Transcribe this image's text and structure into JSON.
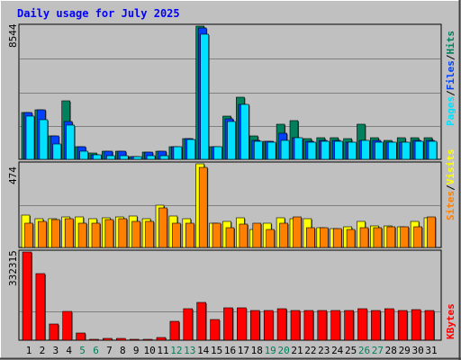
{
  "title": "Daily usage for July 2025",
  "colors": {
    "background": "#c0c0c0",
    "title": "#0000ff",
    "hits": "#00805c",
    "files": "#0040ff",
    "pages": "#00e0ff",
    "visits": "#ffff00",
    "sites": "#ff8000",
    "kbytes": "#ff0000",
    "weekend_day": "#00805c"
  },
  "legends": {
    "upper": [
      {
        "text": "Pages",
        "color": "#00e0ff"
      },
      {
        "text": "/",
        "color": "#000000"
      },
      {
        "text": "Files",
        "color": "#0040ff"
      },
      {
        "text": "/",
        "color": "#000000"
      },
      {
        "text": "Hits",
        "color": "#00805c"
      }
    ],
    "middle": [
      {
        "text": "Sites",
        "color": "#ff8000"
      },
      {
        "text": "/",
        "color": "#000000"
      },
      {
        "text": "Visits",
        "color": "#ffff00"
      }
    ],
    "lower": [
      {
        "text": "KBytes",
        "color": "#ff0000"
      }
    ]
  },
  "chart_data": [
    {
      "type": "bar",
      "panel": "hits-files-pages",
      "ymax_label": "8544",
      "ylim": [
        0,
        8544
      ],
      "categories": [
        "1",
        "2",
        "3",
        "4",
        "5",
        "6",
        "7",
        "8",
        "9",
        "10",
        "11",
        "12",
        "13",
        "14",
        "15",
        "16",
        "17",
        "18",
        "19",
        "20",
        "21",
        "22",
        "23",
        "24",
        "25",
        "26",
        "27",
        "28",
        "29",
        "30",
        "31"
      ],
      "series": [
        {
          "name": "Hits",
          "values": [
            3020,
            3180,
            1510,
            3750,
            820,
            420,
            500,
            500,
            200,
            450,
            500,
            800,
            1300,
            8544,
            800,
            2750,
            3960,
            1520,
            1150,
            2250,
            2500,
            1350,
            1360,
            1360,
            1350,
            2250,
            1360,
            1230,
            1360,
            1360,
            1360
          ]
        },
        {
          "name": "Files",
          "values": [
            3020,
            3180,
            1510,
            2450,
            820,
            310,
            500,
            500,
            200,
            450,
            500,
            800,
            1300,
            8400,
            800,
            2600,
            3500,
            1220,
            1150,
            1700,
            1380,
            1150,
            1220,
            1220,
            1110,
            1220,
            1220,
            1120,
            1100,
            1220,
            1220
          ]
        },
        {
          "name": "Pages",
          "values": [
            2760,
            2560,
            1000,
            2200,
            500,
            260,
            250,
            250,
            200,
            250,
            250,
            800,
            1280,
            8000,
            800,
            2450,
            3500,
            1160,
            1090,
            1240,
            1380,
            1080,
            1150,
            1150,
            1110,
            1220,
            1120,
            1120,
            1100,
            1150,
            1150
          ]
        }
      ],
      "grid": true
    },
    {
      "type": "bar",
      "panel": "visits-sites",
      "ymax_label": "474",
      "ylim": [
        0,
        474
      ],
      "categories": [
        "1",
        "2",
        "3",
        "4",
        "5",
        "6",
        "7",
        "8",
        "9",
        "10",
        "11",
        "12",
        "13",
        "14",
        "15",
        "16",
        "17",
        "18",
        "19",
        "20",
        "21",
        "22",
        "23",
        "24",
        "25",
        "26",
        "27",
        "28",
        "29",
        "30",
        "31"
      ],
      "series": [
        {
          "name": "Visits",
          "values": [
            185,
            165,
            165,
            175,
            175,
            165,
            170,
            175,
            180,
            165,
            240,
            180,
            165,
            474,
            140,
            150,
            170,
            100,
            140,
            170,
            165,
            165,
            110,
            105,
            115,
            150,
            120,
            120,
            115,
            150,
            170
          ]
        },
        {
          "name": "Sites",
          "values": [
            140,
            150,
            160,
            165,
            140,
            140,
            160,
            165,
            150,
            150,
            225,
            140,
            140,
            455,
            140,
            110,
            130,
            140,
            100,
            140,
            175,
            110,
            110,
            105,
            100,
            110,
            110,
            115,
            115,
            115,
            175
          ]
        }
      ],
      "grid": true
    },
    {
      "type": "bar",
      "panel": "kbytes",
      "ymax_label": "332315",
      "ylim": [
        0,
        332315
      ],
      "categories": [
        "1",
        "2",
        "3",
        "4",
        "5",
        "6",
        "7",
        "8",
        "9",
        "10",
        "11",
        "12",
        "13",
        "14",
        "15",
        "16",
        "17",
        "18",
        "19",
        "20",
        "21",
        "22",
        "23",
        "24",
        "25",
        "26",
        "27",
        "28",
        "29",
        "30",
        "31"
      ],
      "series": [
        {
          "name": "KBytes",
          "values": [
            332315,
            250000,
            62000,
            110000,
            27000,
            5000,
            8000,
            8000,
            5000,
            5000,
            10000,
            70000,
            120000,
            142000,
            77000,
            122000,
            122000,
            112000,
            112000,
            117000,
            112000,
            112000,
            112000,
            112000,
            112000,
            117000,
            112000,
            117000,
            112000,
            115000,
            112000
          ]
        }
      ],
      "grid": true
    }
  ],
  "x_axis": {
    "day_labels": [
      "1",
      "2",
      "3",
      "4",
      "5",
      "6",
      "7",
      "8",
      "9",
      "10",
      "11",
      "12",
      "13",
      "14",
      "15",
      "16",
      "17",
      "18",
      "19",
      "20",
      "21",
      "22",
      "23",
      "24",
      "25",
      "26",
      "27",
      "28",
      "29",
      "30",
      "31"
    ],
    "weekend_days": [
      "5",
      "6",
      "12",
      "13",
      "19",
      "20",
      "26",
      "27"
    ]
  }
}
